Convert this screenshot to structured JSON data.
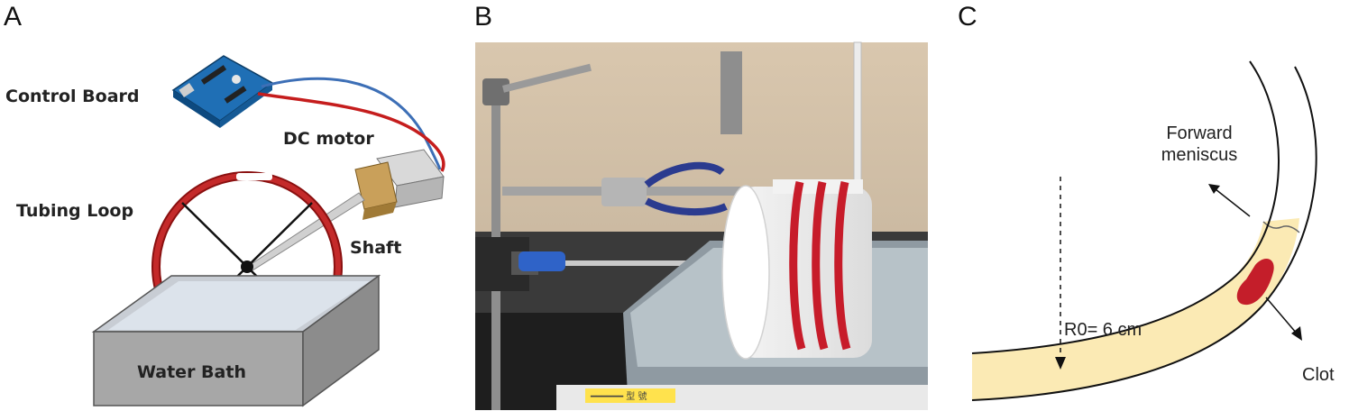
{
  "panels": {
    "a": {
      "letter": "A",
      "labels": {
        "control_board": "Control Board",
        "dc_motor": "DC motor",
        "tubing_loop": "Tubing Loop",
        "shaft": "Shaft",
        "water_bath": "Water Bath"
      }
    },
    "b": {
      "letter": "B",
      "sticker_text": "━━━━━━ 型 號"
    },
    "c": {
      "letter": "C",
      "labels": {
        "forward_meniscus_line1": "Forward",
        "forward_meniscus_line2": "meniscus",
        "radius": "R0= 6 cm",
        "clot": "Clot"
      }
    }
  },
  "colors": {
    "tubing_red": "#b01a1a",
    "blood_red": "#c41e2a",
    "fluid_yellow": "#fbeab4",
    "water_gray": "#a9a9a9"
  }
}
